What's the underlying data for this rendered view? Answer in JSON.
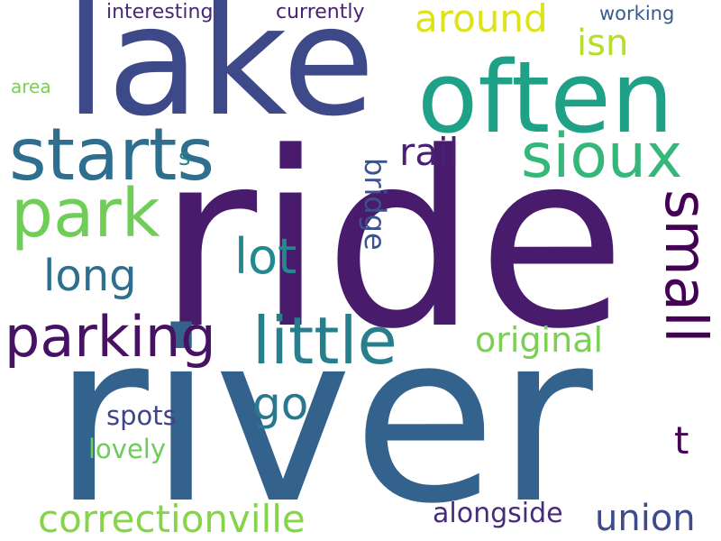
{
  "words": [
    {
      "text": "ride",
      "color": "#481b6d"
    },
    {
      "text": "river",
      "color": "#33628d"
    },
    {
      "text": "lake",
      "color": "#3e4989"
    },
    {
      "text": "often",
      "color": "#1fa187"
    },
    {
      "text": "starts",
      "color": "#2e6e8e"
    },
    {
      "text": "sioux",
      "color": "#35b779"
    },
    {
      "text": "park",
      "color": "#6ece58"
    },
    {
      "text": "parking",
      "color": "#471164"
    },
    {
      "text": "little",
      "color": "#277f8e"
    },
    {
      "text": "small",
      "color": "#440154"
    },
    {
      "text": "lot",
      "color": "#23898e"
    },
    {
      "text": "long",
      "color": "#2e6e8e"
    },
    {
      "text": "bridge",
      "color": "#3b528b"
    },
    {
      "text": "rail",
      "color": "#482173"
    },
    {
      "text": "isn",
      "color": "#b5de2b"
    },
    {
      "text": "around",
      "color": "#dde318"
    },
    {
      "text": "original",
      "color": "#7ad151"
    },
    {
      "text": "go",
      "color": "#2a788e"
    },
    {
      "text": "correctionville",
      "color": "#86d549"
    },
    {
      "text": "union",
      "color": "#3e4a89"
    },
    {
      "text": "alongside",
      "color": "#472c7a"
    },
    {
      "text": "spots",
      "color": "#414487"
    },
    {
      "text": "lovely",
      "color": "#6ccd5a"
    },
    {
      "text": "t",
      "color": "#440154"
    },
    {
      "text": "s",
      "color": "#25848e"
    },
    {
      "text": "interesting",
      "color": "#482878"
    },
    {
      "text": "currently",
      "color": "#482173"
    },
    {
      "text": "working",
      "color": "#365c8d"
    },
    {
      "text": "area",
      "color": "#7ad151"
    }
  ]
}
